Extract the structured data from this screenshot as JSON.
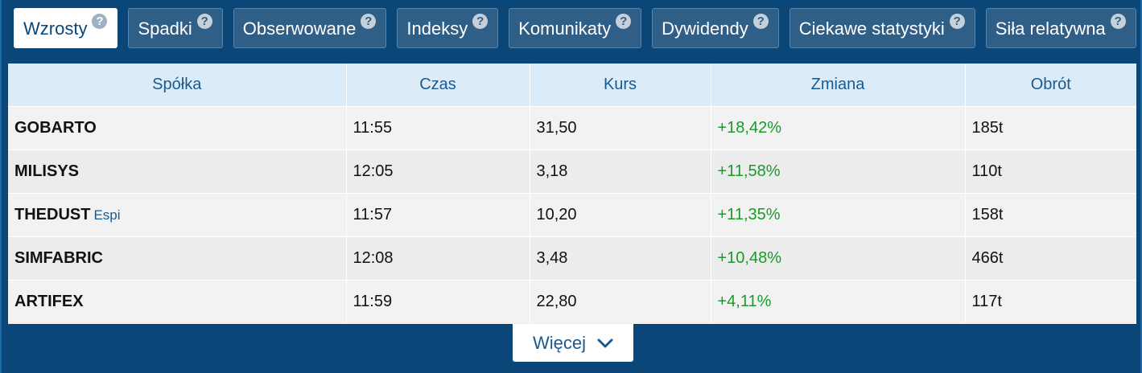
{
  "tabs": [
    {
      "label": "Wzrosty",
      "active": true
    },
    {
      "label": "Spadki",
      "active": false
    },
    {
      "label": "Obserwowane",
      "active": false
    },
    {
      "label": "Indeksy",
      "active": false
    },
    {
      "label": "Komunikaty",
      "active": false
    },
    {
      "label": "Dywidendy",
      "active": false
    },
    {
      "label": "Ciekawe statystyki",
      "active": false
    },
    {
      "label": "Siła relatywna",
      "active": false
    }
  ],
  "help_glyph": "?",
  "table": {
    "headers": [
      "Spółka",
      "Czas",
      "Kurs",
      "Zmiana",
      "Obrót"
    ],
    "rows": [
      {
        "name": "GOBARTO",
        "tag": "",
        "time": "11:55",
        "price": "31,50",
        "change": "+18,42%",
        "turnover": "185t"
      },
      {
        "name": "MILISYS",
        "tag": "",
        "time": "12:05",
        "price": "3,18",
        "change": "+11,58%",
        "turnover": "110t"
      },
      {
        "name": "THEDUST",
        "tag": "Espi",
        "time": "11:57",
        "price": "10,20",
        "change": "+11,35%",
        "turnover": "158t"
      },
      {
        "name": "SIMFABRIC",
        "tag": "",
        "time": "12:08",
        "price": "3,48",
        "change": "+10,48%",
        "turnover": "466t"
      },
      {
        "name": "ARTIFEX",
        "tag": "",
        "time": "11:59",
        "price": "22,80",
        "change": "+4,11%",
        "turnover": "117t"
      }
    ]
  },
  "more_button": {
    "label": "Więcej",
    "icon": "chevron-down-icon"
  },
  "colors": {
    "background": "#0b4679",
    "positive": "#1a9a2a",
    "header_text": "#1b5a8e"
  }
}
